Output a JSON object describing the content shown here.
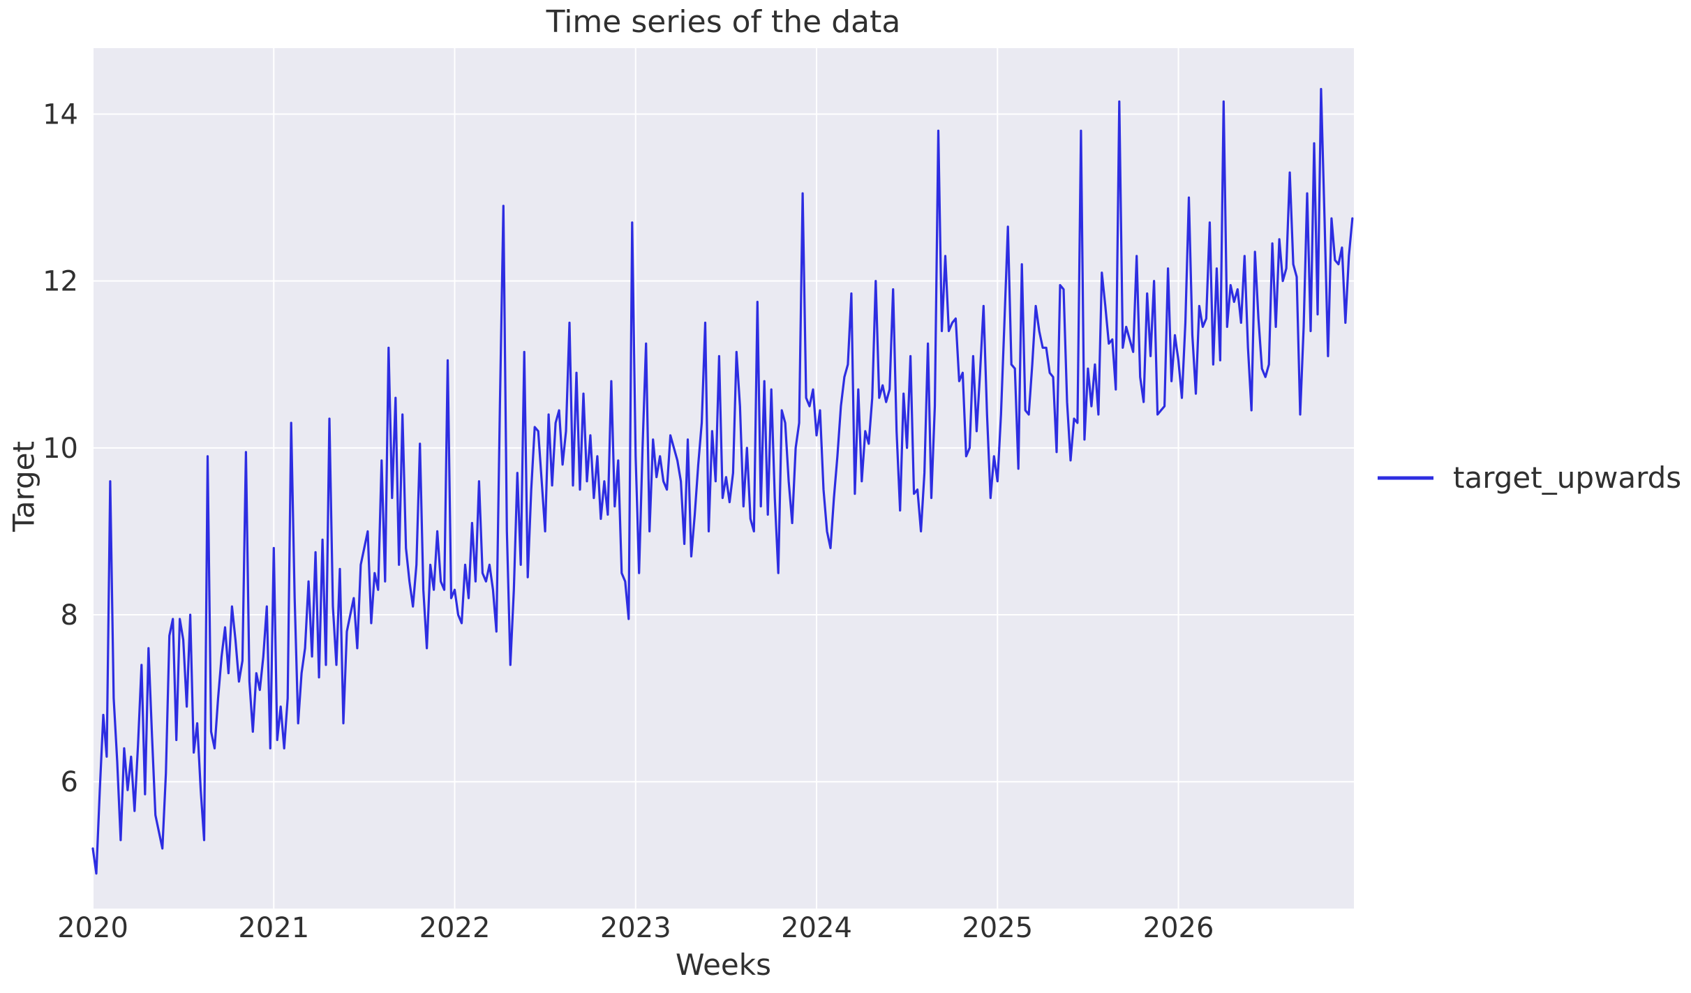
{
  "chart_data": {
    "type": "line",
    "title": "Time series of the data",
    "xlabel": "Weeks",
    "ylabel": "Target",
    "grid": true,
    "x_ticks": [
      2020,
      2021,
      2022,
      2023,
      2024,
      2025,
      2026
    ],
    "y_ticks": [
      6,
      8,
      10,
      12,
      14
    ],
    "xlim": [
      2020,
      2026.97
    ],
    "ylim": [
      4.48,
      14.79
    ],
    "legend": {
      "entries": [
        "target_upwards"
      ],
      "position": "right-outside-center"
    },
    "colors": {
      "line": "#2d2de1",
      "plot_background": "#eaeaf2",
      "grid": "#ffffff",
      "text": "#303030"
    },
    "series": [
      {
        "name": "target_upwards",
        "color": "#2d2de1",
        "x_start_year": 2020,
        "x_step_years": 0.0192308,
        "values": [
          5.2,
          4.9,
          5.9,
          6.8,
          6.3,
          9.6,
          7.0,
          6.25,
          5.3,
          6.4,
          5.9,
          6.3,
          5.65,
          6.45,
          7.4,
          5.85,
          7.6,
          6.55,
          5.6,
          5.4,
          5.2,
          6.1,
          7.75,
          7.95,
          6.5,
          7.95,
          7.7,
          6.9,
          8.0,
          6.35,
          6.7,
          5.9,
          5.3,
          9.9,
          6.6,
          6.4,
          7.0,
          7.5,
          7.85,
          7.3,
          8.1,
          7.7,
          7.2,
          7.45,
          9.95,
          7.2,
          6.6,
          7.3,
          7.1,
          7.5,
          8.1,
          6.4,
          8.8,
          6.5,
          6.9,
          6.4,
          7.0,
          10.3,
          8.2,
          6.7,
          7.3,
          7.6,
          8.4,
          7.5,
          8.75,
          7.25,
          8.9,
          7.4,
          10.35,
          8.1,
          7.4,
          8.55,
          6.7,
          7.8,
          8.0,
          8.2,
          7.6,
          8.6,
          8.8,
          9.0,
          7.9,
          8.5,
          8.3,
          9.85,
          8.4,
          11.2,
          9.4,
          10.6,
          8.6,
          10.4,
          8.8,
          8.4,
          8.1,
          8.6,
          10.05,
          8.3,
          7.6,
          8.6,
          8.3,
          9.0,
          8.4,
          8.3,
          11.05,
          8.2,
          8.3,
          8.0,
          7.9,
          8.6,
          8.2,
          9.1,
          8.4,
          9.6,
          8.5,
          8.4,
          8.6,
          8.3,
          7.8,
          10.5,
          12.9,
          9.0,
          7.4,
          8.3,
          9.7,
          8.6,
          11.15,
          8.45,
          9.5,
          10.25,
          10.2,
          9.6,
          9.0,
          10.4,
          9.55,
          10.3,
          10.45,
          9.8,
          10.2,
          11.5,
          9.55,
          10.9,
          9.5,
          10.65,
          9.6,
          10.15,
          9.4,
          9.9,
          9.15,
          9.6,
          9.2,
          10.8,
          9.3,
          9.85,
          8.5,
          8.4,
          7.95,
          12.7,
          9.9,
          8.5,
          10.0,
          11.25,
          9.0,
          10.1,
          9.65,
          9.9,
          9.6,
          9.5,
          10.15,
          10.0,
          9.85,
          9.6,
          8.85,
          10.1,
          8.7,
          9.2,
          9.8,
          10.3,
          11.5,
          9.0,
          10.2,
          9.6,
          11.1,
          9.4,
          9.65,
          9.35,
          9.7,
          11.15,
          10.5,
          9.3,
          10.0,
          9.15,
          9.0,
          11.75,
          9.3,
          10.8,
          9.2,
          10.7,
          9.4,
          8.5,
          10.45,
          10.3,
          9.6,
          9.1,
          10.0,
          10.3,
          13.05,
          10.6,
          10.5,
          10.7,
          10.15,
          10.45,
          9.5,
          9.0,
          8.8,
          9.4,
          9.9,
          10.5,
          10.85,
          11.0,
          11.85,
          9.45,
          10.7,
          9.6,
          10.2,
          10.05,
          10.6,
          12.0,
          10.6,
          10.75,
          10.55,
          10.7,
          11.9,
          10.2,
          9.25,
          10.65,
          10.0,
          11.1,
          9.45,
          9.5,
          9.0,
          9.7,
          11.25,
          9.4,
          10.5,
          13.8,
          11.4,
          12.3,
          11.4,
          11.5,
          11.55,
          10.8,
          10.9,
          9.9,
          10.0,
          11.1,
          10.2,
          10.9,
          11.7,
          10.4,
          9.4,
          9.9,
          9.6,
          10.4,
          11.5,
          12.65,
          11.0,
          10.95,
          9.75,
          12.2,
          10.45,
          10.4,
          11.0,
          11.7,
          11.4,
          11.2,
          11.2,
          10.9,
          10.85,
          9.95,
          11.95,
          11.9,
          10.55,
          9.85,
          10.35,
          10.3,
          13.8,
          10.1,
          10.95,
          10.5,
          11.0,
          10.4,
          12.1,
          11.7,
          11.25,
          11.3,
          10.7,
          14.15,
          11.2,
          11.45,
          11.3,
          11.15,
          12.3,
          10.85,
          10.55,
          11.85,
          11.1,
          12.0,
          10.4,
          10.45,
          10.5,
          12.15,
          10.8,
          11.35,
          11.05,
          10.6,
          11.5,
          13.0,
          11.35,
          10.65,
          11.7,
          11.45,
          11.55,
          12.7,
          11.0,
          12.15,
          11.05,
          14.15,
          11.45,
          11.95,
          11.75,
          11.9,
          11.5,
          12.3,
          11.2,
          10.45,
          12.35,
          11.55,
          10.95,
          10.85,
          11.0,
          12.45,
          11.45,
          12.5,
          12.0,
          12.15,
          13.3,
          12.2,
          12.05,
          10.4,
          11.45,
          13.05,
          11.4,
          13.65,
          11.6,
          14.3,
          12.75,
          11.1,
          12.75,
          12.25,
          12.2,
          12.4,
          11.5,
          12.3,
          12.75
        ]
      }
    ]
  }
}
